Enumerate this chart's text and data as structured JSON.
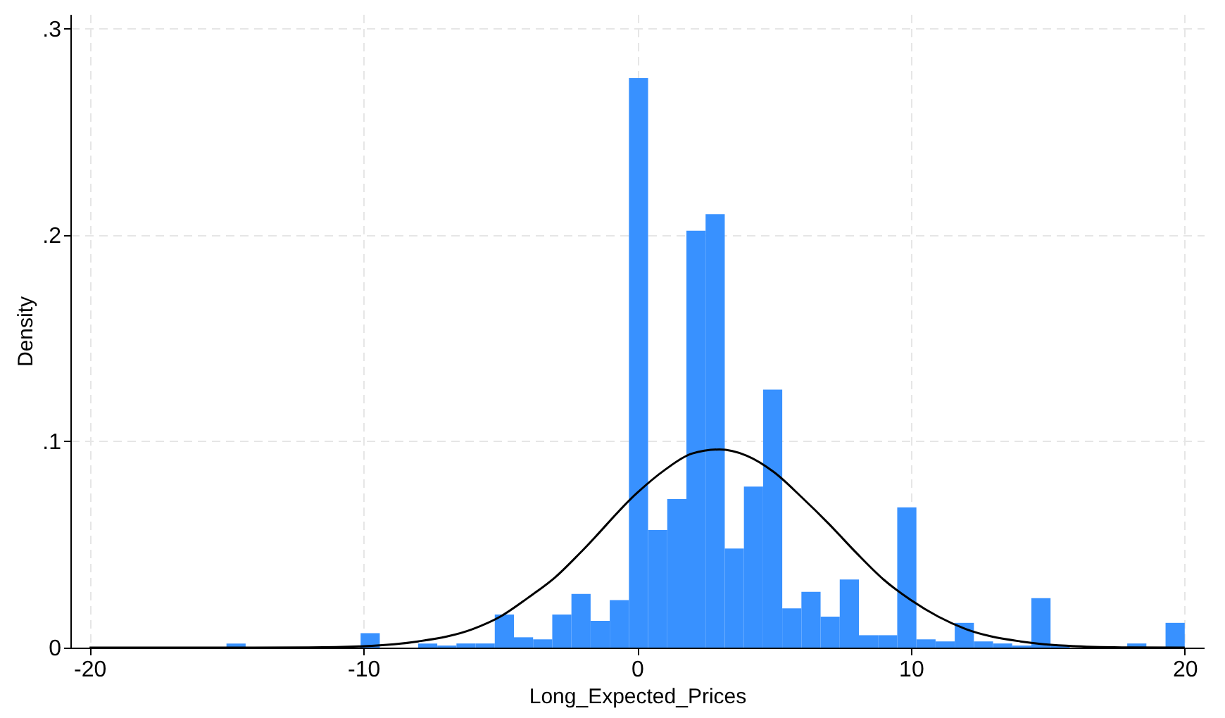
{
  "chart_data": {
    "type": "histogram",
    "xlabel": "Long_Expected_Prices",
    "ylabel": "Density",
    "xlim": [
      -20.7,
      20.7
    ],
    "xticks": [
      -20,
      -10,
      0,
      10,
      20
    ],
    "ylim": [
      0,
      0.307
    ],
    "yticks": [
      0,
      {
        "value": 0.1,
        "label": ".1"
      },
      {
        "value": 0.2,
        "label": ".2"
      },
      {
        "value": 0.3,
        "label": ".3"
      }
    ],
    "grid": true,
    "series": [
      {
        "color": "#3891ff",
        "bins": [
          -15,
          -14.3,
          -13.6,
          -12.9,
          -12.2,
          -11.5,
          -10.8,
          -10.1,
          -9.4,
          -8.7,
          -8,
          -7.3,
          -6.6,
          -5.9,
          -5.2,
          -4.5,
          -3.8,
          -3.1,
          -2.4,
          -1.7,
          -1,
          -0.3,
          0.4,
          1.1,
          1.8,
          2.5,
          3.2,
          3.9,
          4.6,
          5.3,
          6,
          6.7,
          7.4,
          8.1,
          8.8,
          9.5,
          10.2,
          10.9,
          11.6,
          12.3,
          13,
          13.7,
          14.4,
          15.1,
          15.8,
          16.5,
          17.2,
          17.9,
          18.6,
          19.3,
          20
        ],
        "values": [
          0.002,
          0,
          0,
          0,
          0,
          0,
          0,
          0.007,
          0,
          0,
          0.002,
          0.001,
          0.002,
          0.002,
          0.016,
          0.005,
          0.004,
          0.016,
          0.026,
          0.013,
          0.023,
          0.276,
          0.057,
          0.072,
          0.202,
          0.21,
          0.048,
          0.078,
          0.125,
          0.019,
          0.027,
          0.015,
          0.033,
          0.006,
          0.006,
          0.068,
          0.004,
          0.003,
          0.012,
          0.003,
          0.002,
          0.001,
          0.024,
          0.001,
          0,
          0,
          0,
          0.002,
          0,
          0.012
        ]
      },
      {
        "type": "line",
        "color": "#000000",
        "x": [
          -20,
          -16,
          -14,
          -12,
          -10,
          -8,
          -6,
          -5,
          -4,
          -3,
          -2,
          0,
          1,
          2,
          3,
          4,
          5,
          6,
          7,
          8,
          9,
          10,
          11,
          12,
          14,
          16,
          18,
          20
        ],
        "values": [
          0,
          0,
          0,
          0.0001,
          0.0007,
          0.003,
          0.009,
          0.015,
          0.024,
          0.034,
          0.047,
          0.075,
          0.086,
          0.094,
          0.096,
          0.093,
          0.085,
          0.073,
          0.06,
          0.046,
          0.033,
          0.023,
          0.015,
          0.009,
          0.003,
          0.0007,
          0.0001,
          0
        ]
      }
    ]
  }
}
